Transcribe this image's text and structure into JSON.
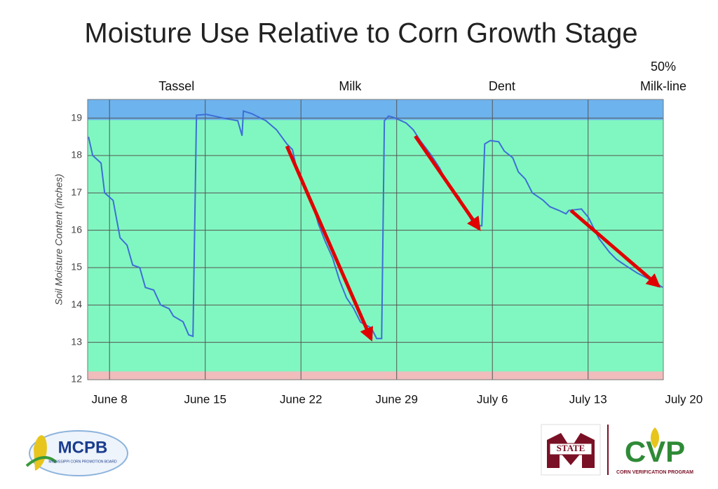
{
  "chart_data": {
    "type": "line",
    "title": "Moisture Use Relative to Corn Growth Stage",
    "y_label": "Soil Moisture Content (inches)",
    "xlim": [
      6.4,
      48.5
    ],
    "ylim": [
      12,
      19.5
    ],
    "xticks": [
      {
        "value": 8,
        "label": "June 8"
      },
      {
        "value": 15,
        "label": "June 15"
      },
      {
        "value": 22,
        "label": "June 22"
      },
      {
        "value": 29,
        "label": "June 29"
      },
      {
        "value": 36,
        "label": "July 6"
      },
      {
        "value": 43,
        "label": "July 13"
      },
      {
        "value": 50,
        "label": "July 20"
      }
    ],
    "yticks": [
      12,
      13,
      14,
      15,
      16,
      17,
      18,
      19
    ],
    "grid": true,
    "color": "#3d6fd6",
    "plot_color": "#80f7c0",
    "zones": [
      {
        "from": 18.95,
        "to": 19.5,
        "color": "#6db3ee"
      },
      {
        "from": 12,
        "to": 12.22,
        "color": "#f0bcbc"
      }
    ],
    "x": [
      6.46,
      6.77,
      7.38,
      7.64,
      8.26,
      8.77,
      9.28,
      9.69,
      10.21,
      10.62,
      11.23,
      11.74,
      12.36,
      12.67,
      13.38,
      13.79,
      14.1,
      14.36,
      15.08,
      16.36,
      17.38,
      17.69,
      17.79,
      18.41,
      19.44,
      20.21,
      20.97,
      21.38,
      21.74,
      22.1,
      22.51,
      22.92,
      23.28,
      23.79,
      24.31,
      24.82,
      25.33,
      25.85,
      26.36,
      27.13,
      27.54,
      27.9,
      28.1,
      28.41,
      28.92,
      29.69,
      30.21,
      30.72,
      31.49,
      32.15,
      32.77,
      33.54,
      34.05,
      34.72,
      35.23,
      35.44,
      35.85,
      36.46,
      36.87,
      37.49,
      37.9,
      38.41,
      38.92,
      39.69,
      40.21,
      40.87,
      41.38,
      41.59,
      42.51,
      43.03,
      43.79,
      44.56,
      45.08,
      45.85,
      46.62,
      47.64,
      48.46
    ],
    "values": [
      18.5,
      18.0,
      17.8,
      17.0,
      16.8,
      15.8,
      15.6,
      15.07,
      15.0,
      14.47,
      14.4,
      14.0,
      13.9,
      13.7,
      13.55,
      13.2,
      13.16,
      19.08,
      19.1,
      19.0,
      18.93,
      18.53,
      19.19,
      19.12,
      18.93,
      18.69,
      18.31,
      18.16,
      17.56,
      17.28,
      16.9,
      16.63,
      16.16,
      15.69,
      15.26,
      14.66,
      14.19,
      13.91,
      13.54,
      13.39,
      13.1,
      13.1,
      18.93,
      19.06,
      19.0,
      18.87,
      18.69,
      18.4,
      18.03,
      17.66,
      17.19,
      16.9,
      16.53,
      16.12,
      16.12,
      18.31,
      18.4,
      18.37,
      18.12,
      17.94,
      17.56,
      17.37,
      17.0,
      16.81,
      16.63,
      16.53,
      16.44,
      16.53,
      16.57,
      16.34,
      15.78,
      15.41,
      15.22,
      15.03,
      14.85,
      14.66,
      14.47
    ],
    "arrows": [
      {
        "x": [
          20.97,
          27.13
        ],
        "y": [
          18.25,
          13.09
        ]
      },
      {
        "x": [
          30.36,
          35.03
        ],
        "y": [
          18.52,
          16.04
        ]
      },
      {
        "x": [
          41.74,
          48.15
        ],
        "y": [
          16.53,
          14.51
        ]
      }
    ],
    "arrow_color": "#e00000",
    "annotations": [
      {
        "lines": [
          "Tassel"
        ],
        "x": 12.9
      },
      {
        "lines": [
          "Milk"
        ],
        "x": 25.6
      },
      {
        "lines": [
          "Dent"
        ],
        "x": 36.7
      },
      {
        "lines": [
          "50%",
          "Milk-line"
        ],
        "x": 48.5
      }
    ]
  },
  "logos": {
    "mcpb": "MCPB",
    "mcpb_sub": "MISSISSIPPI CORN PROMOTION BOARD",
    "state": "STATE",
    "cvp": "CVP",
    "cvp_sub": "CORN VERIFICATION PROGRAM"
  }
}
